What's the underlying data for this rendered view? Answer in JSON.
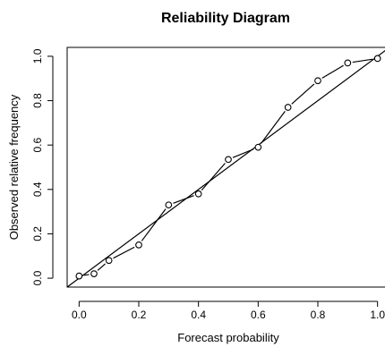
{
  "chart_data": {
    "type": "line",
    "title": "Reliability Diagram",
    "xlabel": "Forecast probability",
    "ylabel": "Observed relative frequency",
    "xlim": [
      -0.04,
      1.04
    ],
    "ylim": [
      -0.04,
      1.04
    ],
    "x_ticks": [
      "0.0",
      "0.2",
      "0.4",
      "0.6",
      "0.8",
      "1.0"
    ],
    "y_ticks": [
      "0.0",
      "0.2",
      "0.4",
      "0.6",
      "0.8",
      "1.0"
    ],
    "grid": false,
    "reference_line": {
      "from": [
        0,
        0
      ],
      "to": [
        1,
        1
      ],
      "label": ""
    },
    "series": [
      {
        "x": [
          0.0,
          0.05,
          0.1,
          0.2,
          0.3,
          0.4,
          0.5,
          0.6,
          0.7,
          0.8,
          0.9,
          1.0
        ],
        "y": [
          0.01,
          0.02,
          0.08,
          0.15,
          0.33,
          0.38,
          0.535,
          0.59,
          0.77,
          0.89,
          0.97,
          0.99
        ],
        "marker": "open-circle",
        "line_style": "dashed",
        "color": "#000000"
      }
    ]
  }
}
